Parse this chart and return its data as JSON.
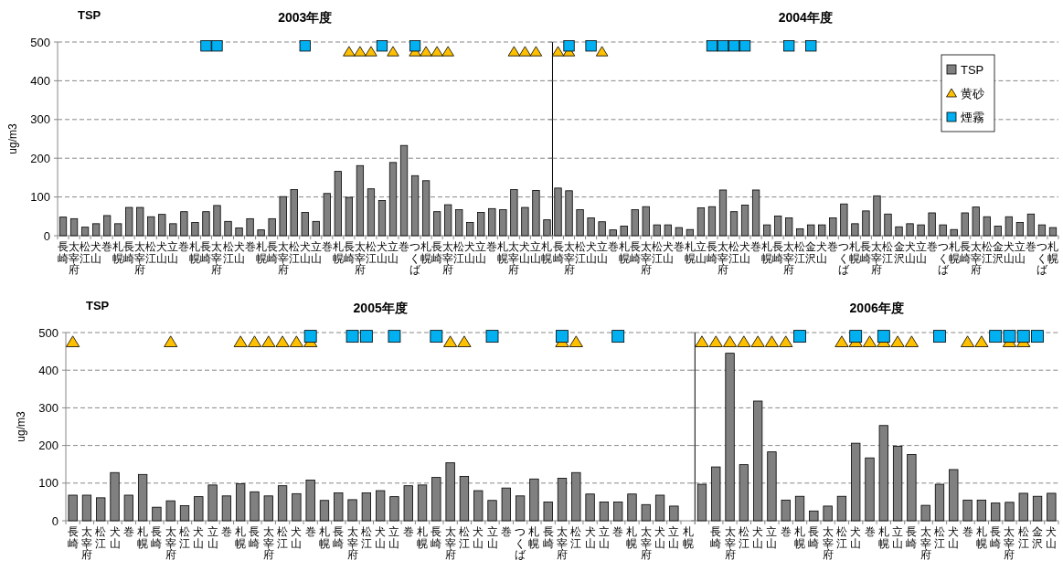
{
  "chart_data": [
    {
      "type": "bar",
      "title": "2003年度",
      "annotations": [
        "TSP"
      ],
      "ylabel": "ug/m3",
      "ylim": [
        0,
        500
      ],
      "yticks": [
        0,
        100,
        200,
        300,
        400,
        500
      ],
      "grid": "y",
      "categories": [
        "長崎",
        "太宰府",
        "松江",
        "犬山",
        "巻",
        "札幌",
        "長崎",
        "太宰府",
        "松江",
        "犬山",
        "立山",
        "巻",
        "札幌",
        "長崎",
        "太宰府",
        "松江",
        "犬山",
        "巻",
        "札幌",
        "長崎",
        "太宰府",
        "松江",
        "犬山",
        "立山",
        "巻",
        "札幌",
        "長崎",
        "太宰府",
        "松江",
        "犬山",
        "立山",
        "巻",
        "つくば",
        "札幌",
        "長崎",
        "太宰府",
        "松江",
        "犬山",
        "立山",
        "巻",
        "札幌",
        "太宰府",
        "犬山",
        "立山",
        "札幌"
      ],
      "series": [
        {
          "color": "#808080",
          "values": [
            48,
            44,
            22,
            31,
            52,
            31,
            73,
            73,
            49,
            55,
            31,
            62,
            34,
            62,
            78,
            37,
            20,
            44,
            15,
            44,
            101,
            119,
            60,
            37,
            109,
            166,
            99,
            181,
            121,
            91,
            189,
            233,
            155,
            142,
            62,
            80,
            67,
            34,
            60,
            70,
            67,
            119,
            73,
            117,
            41
          ]
        },
        {
          "type": "scatter",
          "marker": "triangle",
          "color": "#ffc000",
          "values": [
            null,
            null,
            null,
            null,
            null,
            null,
            null,
            null,
            null,
            null,
            null,
            null,
            null,
            null,
            null,
            null,
            null,
            null,
            null,
            null,
            null,
            null,
            null,
            null,
            null,
            null,
            475,
            475,
            475,
            null,
            475,
            null,
            475,
            475,
            475,
            475,
            null,
            null,
            null,
            null,
            null,
            475,
            475,
            475,
            null
          ]
        },
        {
          "type": "scatter",
          "marker": "square",
          "color": "#00b0f0",
          "values": [
            null,
            null,
            null,
            null,
            null,
            null,
            null,
            null,
            null,
            null,
            null,
            null,
            null,
            490,
            490,
            null,
            null,
            null,
            null,
            null,
            null,
            null,
            490,
            null,
            null,
            null,
            null,
            null,
            null,
            490,
            null,
            null,
            490,
            null,
            null,
            null,
            null,
            null,
            null,
            null,
            null,
            null,
            null,
            null,
            null
          ]
        }
      ]
    },
    {
      "type": "bar",
      "title": "2004年度",
      "ylim": [
        0,
        500
      ],
      "yticks": [
        0,
        100,
        200,
        300,
        400,
        500
      ],
      "grid": "y",
      "tick_labels": "x",
      "legend": "top right",
      "categories": [
        "長崎",
        "太宰府",
        "松江",
        "犬山",
        "立山",
        "巻",
        "札幌",
        "長崎",
        "太宰府",
        "松江",
        "犬山",
        "巻",
        "札幌",
        "立山",
        "長崎",
        "太宰府",
        "松江",
        "犬山",
        "巻",
        "札幌",
        "長崎",
        "太宰府",
        "松江",
        "金沢",
        "犬山",
        "巻",
        "つくば",
        "札幌",
        "長崎",
        "太宰府",
        "松江",
        "金沢",
        "犬山",
        "立山",
        "巻",
        "つくば",
        "札幌",
        "長崎",
        "太宰府",
        "松江",
        "金沢",
        "犬山",
        "立山",
        "巻",
        "つくば",
        "札幌"
      ],
      "series": [
        {
          "name": "TSP",
          "color": "#808080",
          "values": [
            123,
            116,
            67,
            46,
            36,
            15,
            25,
            67,
            75,
            28,
            28,
            21,
            16,
            72,
            75,
            118,
            62,
            79,
            118,
            28,
            51,
            46,
            18,
            28,
            28,
            46,
            82,
            31,
            64,
            103,
            56,
            23,
            31,
            28,
            59,
            28,
            16,
            59,
            74,
            49,
            25,
            49,
            34,
            56,
            28,
            21
          ]
        },
        {
          "name": "黄砂",
          "type": "scatter",
          "marker": "triangle",
          "color": "#ffc000",
          "values": [
            475,
            475,
            null,
            null,
            475,
            null,
            null,
            null,
            null,
            null,
            null,
            null,
            null,
            null,
            null,
            null,
            null,
            null,
            null,
            null,
            null,
            null,
            null,
            null,
            null,
            null,
            null,
            null,
            null,
            null,
            null,
            null,
            null,
            null,
            null,
            null,
            null,
            null,
            null,
            null,
            null,
            null,
            null,
            null,
            null,
            null
          ]
        },
        {
          "name": "煙霧",
          "type": "scatter",
          "marker": "square",
          "color": "#00b0f0",
          "values": [
            null,
            490,
            null,
            490,
            null,
            null,
            null,
            null,
            null,
            null,
            null,
            null,
            null,
            null,
            490,
            490,
            490,
            490,
            null,
            null,
            null,
            490,
            null,
            490,
            null,
            null,
            null,
            null,
            null,
            null,
            null,
            null,
            null,
            null,
            null,
            null,
            null,
            null,
            null,
            null,
            null,
            null,
            null,
            null,
            null,
            null
          ]
        }
      ]
    },
    {
      "type": "bar",
      "title": "2005年度",
      "annotations": [
        "TSP"
      ],
      "ylabel": "ug/m3",
      "ylim": [
        0,
        500
      ],
      "yticks": [
        0,
        100,
        200,
        300,
        400,
        500
      ],
      "grid": "y",
      "categories": [
        "長崎",
        "太宰府",
        "松江",
        "犬山",
        "巻",
        "札幌",
        "長崎",
        "太宰府",
        "松江",
        "犬山",
        "立山",
        "巻",
        "札幌",
        "長崎",
        "太宰府",
        "松江",
        "犬山",
        "巻",
        "札幌",
        "長崎",
        "太宰府",
        "松江",
        "犬山",
        "立山",
        "巻",
        "札幌",
        "長崎",
        "太宰府",
        "松江",
        "犬山",
        "立山",
        "巻",
        "つくば",
        "札幌",
        "長崎",
        "太宰府",
        "松江",
        "犬山",
        "立山",
        "巻",
        "札幌",
        "太宰府",
        "犬山",
        "立山",
        "札幌"
      ],
      "series": [
        {
          "color": "#808080",
          "values": [
            68,
            68,
            61,
            128,
            68,
            123,
            36,
            53,
            40,
            64,
            95,
            66,
            98,
            77,
            66,
            93,
            72,
            108,
            54,
            74,
            56,
            74,
            80,
            64,
            93,
            95,
            115,
            154,
            118,
            80,
            54,
            87,
            66,
            111,
            50,
            113,
            128,
            71,
            50,
            50,
            71,
            43,
            68,
            39,
            null
          ]
        },
        {
          "type": "scatter",
          "marker": "triangle",
          "color": "#ffc000",
          "values": [
            475,
            null,
            null,
            null,
            null,
            null,
            null,
            475,
            null,
            null,
            null,
            null,
            475,
            475,
            475,
            475,
            475,
            475,
            null,
            null,
            null,
            null,
            null,
            null,
            null,
            null,
            null,
            475,
            475,
            null,
            null,
            null,
            null,
            null,
            null,
            475,
            475,
            null,
            null,
            null,
            null,
            null,
            null,
            null,
            null
          ]
        },
        {
          "type": "scatter",
          "marker": "square",
          "color": "#00b0f0",
          "values": [
            null,
            null,
            null,
            null,
            null,
            null,
            null,
            null,
            null,
            null,
            null,
            null,
            null,
            null,
            null,
            null,
            null,
            490,
            null,
            null,
            490,
            490,
            null,
            490,
            null,
            null,
            490,
            null,
            null,
            null,
            490,
            null,
            null,
            null,
            null,
            490,
            null,
            null,
            null,
            490,
            null,
            null,
            null,
            null,
            null
          ]
        }
      ]
    },
    {
      "type": "bar",
      "title": "2006年度",
      "ylim": [
        0,
        500
      ],
      "yticks": [
        0,
        100,
        200,
        300,
        400,
        500
      ],
      "grid": "y",
      "tick_labels": "x",
      "categories": [
        null,
        "長崎",
        "太宰府",
        "松江",
        "犬山",
        "立山",
        "巻",
        "札幌",
        "長崎",
        "太宰府",
        "松江",
        "犬山",
        "巻",
        "札幌",
        "立山",
        "長崎",
        "太宰府",
        "松江",
        "犬山",
        "巻",
        "札幌",
        "長崎",
        "太宰府",
        "松江",
        "金沢",
        "犬山"
      ],
      "series": [
        {
          "color": "#808080",
          "values": [
            97,
            143,
            445,
            149,
            318,
            183,
            55,
            65,
            26,
            39,
            65,
            206,
            167,
            253,
            198,
            176,
            41,
            97,
            136,
            55,
            55,
            47,
            49,
            73,
            65,
            73
          ]
        },
        {
          "type": "scatter",
          "marker": "triangle",
          "color": "#ffc000",
          "values": [
            475,
            475,
            475,
            475,
            475,
            475,
            475,
            null,
            null,
            null,
            475,
            475,
            475,
            475,
            475,
            475,
            null,
            null,
            null,
            475,
            475,
            null,
            475,
            475,
            null,
            null
          ]
        },
        {
          "type": "scatter",
          "marker": "square",
          "color": "#00b0f0",
          "values": [
            null,
            null,
            null,
            null,
            null,
            null,
            null,
            490,
            null,
            null,
            null,
            490,
            null,
            490,
            null,
            null,
            null,
            490,
            null,
            null,
            null,
            490,
            490,
            490,
            490,
            null
          ]
        }
      ]
    }
  ]
}
